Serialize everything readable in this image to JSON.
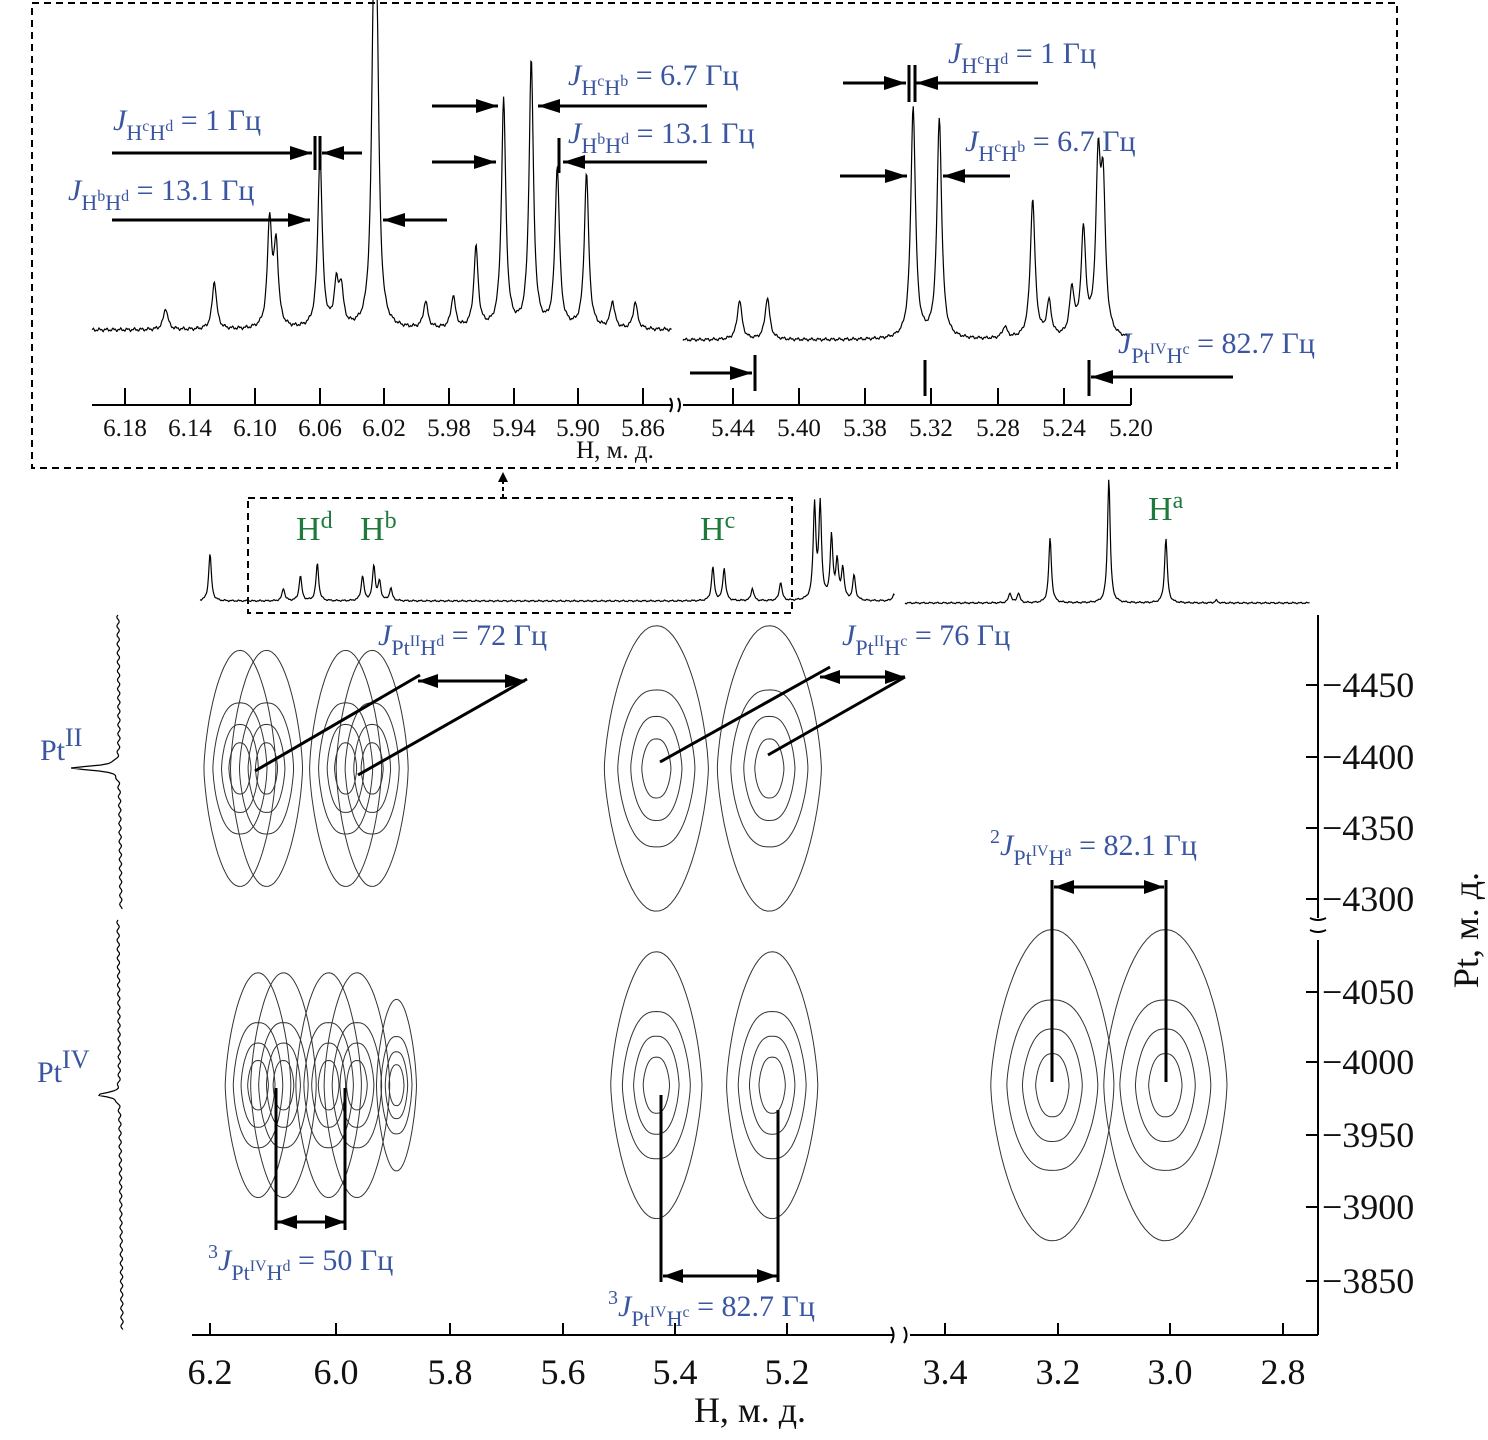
{
  "chart_data": [
    {
      "type": "line",
      "title": "",
      "xlabel": "H, м. д.",
      "segments": [
        {
          "xlim": [
            6.2,
            5.85
          ],
          "ticks": [
            "6.18",
            "6.14",
            "6.10",
            "6.06",
            "6.02",
            "5.98",
            "5.94",
            "5.90",
            "5.86"
          ],
          "peaks": [
            [
              6.155,
              0.08
            ],
            [
              6.125,
              0.18
            ],
            [
              6.091,
              0.4
            ],
            [
              6.087,
              0.3
            ],
            [
              6.06,
              0.65
            ],
            [
              6.05,
              0.15
            ],
            [
              6.047,
              0.14
            ],
            [
              6.027,
              1.0
            ],
            [
              6.025,
              0.9
            ],
            [
              5.995,
              0.1
            ],
            [
              5.978,
              0.12
            ],
            [
              5.964,
              0.3
            ],
            [
              5.947,
              0.85
            ],
            [
              5.93,
              1.0
            ],
            [
              5.914,
              0.6
            ],
            [
              5.896,
              0.58
            ],
            [
              5.88,
              0.1
            ],
            [
              5.866,
              0.1
            ]
          ]
        },
        {
          "xlim": [
            5.45,
            5.2
          ],
          "ticks": [
            "5.44",
            "5.40",
            "5.38",
            "5.32",
            "5.28",
            "5.24",
            "5.20"
          ],
          "peaks": [
            [
              5.436,
              0.17
            ],
            [
              5.419,
              0.18
            ],
            [
              5.33,
              1.0
            ],
            [
              5.314,
              0.95
            ],
            [
              5.274,
              0.05
            ],
            [
              5.257,
              0.6
            ],
            [
              5.247,
              0.15
            ],
            [
              5.233,
              0.2
            ],
            [
              5.226,
              0.45
            ],
            [
              5.217,
              0.7
            ],
            [
              5.214,
              0.6
            ]
          ]
        }
      ]
    },
    {
      "type": "line",
      "xlabel": "H, м. д.",
      "signal_labels": [
        {
          "main": "H",
          "sup": "d"
        },
        {
          "main": "H",
          "sup": "b"
        },
        {
          "main": "H",
          "sup": "c"
        },
        {
          "main": "H",
          "sup": "a"
        }
      ],
      "segments": [
        {
          "xlim": [
            6.22,
            5.0
          ],
          "peaks": [
            [
              6.2,
              0.38
            ],
            [
              6.07,
              0.1
            ],
            [
              6.04,
              0.2
            ],
            [
              6.01,
              0.3
            ],
            [
              5.93,
              0.2
            ],
            [
              5.91,
              0.28
            ],
            [
              5.9,
              0.15
            ],
            [
              5.88,
              0.1
            ],
            [
              5.31,
              0.27
            ],
            [
              5.29,
              0.26
            ],
            [
              5.24,
              0.1
            ],
            [
              5.19,
              0.15
            ],
            [
              5.13,
              0.75
            ],
            [
              5.12,
              0.75
            ],
            [
              5.1,
              0.5
            ],
            [
              5.09,
              0.3
            ],
            [
              5.08,
              0.25
            ],
            [
              5.06,
              0.2
            ],
            [
              4.99,
              0.05
            ]
          ]
        },
        {
          "xlim": [
            3.4,
            2.75
          ],
          "peaks": [
            [
              3.285,
              0.08
            ],
            [
              3.27,
              0.08
            ],
            [
              3.214,
              0.52
            ],
            [
              3.11,
              1.0
            ],
            [
              3.009,
              0.52
            ],
            [
              2.92,
              0.02
            ]
          ]
        }
      ]
    },
    {
      "type": "heatmap",
      "subtype": "contour",
      "xlabel": "H, м. д.",
      "ylabel": "Pt, м. д.",
      "x_ticks": {
        "left": [
          "6.2",
          "6.0",
          "5.8",
          "5.6",
          "5.4",
          "5.2"
        ],
        "right": [
          "3.4",
          "3.2",
          "3.0",
          "2.8"
        ]
      },
      "y_ticks": {
        "PtII": [
          "−4450",
          "−4400",
          "−4350",
          "−4300"
        ],
        "PtIV": [
          "−4050",
          "−4000",
          "−3950",
          "−3900",
          "−3850"
        ]
      },
      "y_labels": {
        "PtII": {
          "main": "Pt",
          "sup": "II"
        },
        "PtIV": {
          "main": "Pt",
          "sup": "IV"
        }
      },
      "cross_peaks": [
        {
          "H": 6.147,
          "Pt": -4392,
          "size": 1
        },
        {
          "H": 6.1,
          "Pt": -4392,
          "size": 1
        },
        {
          "H": 5.96,
          "Pt": -4392,
          "size": 1
        },
        {
          "H": 5.913,
          "Pt": -4392,
          "size": 1
        },
        {
          "H": 5.41,
          "Pt": -4392,
          "size": 1.5
        },
        {
          "H": 5.21,
          "Pt": -4392,
          "size": 1.5
        },
        {
          "H": 6.115,
          "Pt": -3984,
          "size": 0.9
        },
        {
          "H": 6.07,
          "Pt": -3984,
          "size": 0.9
        },
        {
          "H": 5.99,
          "Pt": -3984,
          "size": 0.9
        },
        {
          "H": 5.94,
          "Pt": -3984,
          "size": 0.9
        },
        {
          "H": 5.87,
          "Pt": -3984,
          "size": 0.5
        },
        {
          "H": 5.41,
          "Pt": -3984,
          "size": 1.3
        },
        {
          "H": 5.205,
          "Pt": -3984,
          "size": 1.3
        },
        {
          "H": 3.21,
          "Pt": -3984,
          "size": 1.8
        },
        {
          "H": 3.01,
          "Pt": -3984,
          "size": 1.8
        }
      ]
    }
  ],
  "annotations": [
    {
      "pre": "",
      "j": "J",
      "sub": [
        [
          "H",
          "c"
        ],
        [
          "H",
          "b"
        ]
      ],
      "rest": " = 6.7 Гц"
    },
    {
      "pre": "",
      "j": "J",
      "sub": [
        [
          "H",
          "c"
        ],
        [
          "H",
          "d"
        ]
      ],
      "rest": " = 1 Гц"
    },
    {
      "pre": "",
      "j": "J",
      "sub": [
        [
          "H",
          "b"
        ],
        [
          "H",
          "d"
        ]
      ],
      "rest": " = 13.1 Гц"
    },
    {
      "pre": "",
      "j": "J",
      "sub": [
        [
          "H",
          "b"
        ],
        [
          "H",
          "d"
        ]
      ],
      "rest": " = 13.1 Гц"
    },
    {
      "pre": "",
      "j": "J",
      "sub": [
        [
          "H",
          "c"
        ],
        [
          "H",
          "d"
        ]
      ],
      "rest": " = 1 Гц"
    },
    {
      "pre": "",
      "j": "J",
      "sub": [
        [
          "H",
          "c"
        ],
        [
          "H",
          "b"
        ]
      ],
      "rest": " = 6.7 Гц"
    },
    {
      "pre": "",
      "j": "J",
      "sub": [
        [
          "Pt",
          "IV"
        ],
        [
          "H",
          "c"
        ]
      ],
      "rest": " = 82.7 Гц"
    },
    {
      "pre": "",
      "j": "J",
      "sub": [
        [
          "Pt",
          "II"
        ],
        [
          "H",
          "d"
        ]
      ],
      "rest": " = 72 Гц"
    },
    {
      "pre": "",
      "j": "J",
      "sub": [
        [
          "Pt",
          "II"
        ],
        [
          "H",
          "c"
        ]
      ],
      "rest": " = 76 Гц"
    },
    {
      "pre": "2",
      "j": "J",
      "sub": [
        [
          "Pt",
          "IV"
        ],
        [
          "H",
          "a"
        ]
      ],
      "rest": " = 82.1 Гц"
    },
    {
      "pre": "3",
      "j": "J",
      "sub": [
        [
          "Pt",
          "IV"
        ],
        [
          "H",
          "d"
        ]
      ],
      "rest": " = 50 Гц"
    },
    {
      "pre": "3",
      "j": "J",
      "sub": [
        [
          "Pt",
          "IV"
        ],
        [
          "H",
          "c"
        ]
      ],
      "rest": " = 82.7 Гц"
    }
  ]
}
